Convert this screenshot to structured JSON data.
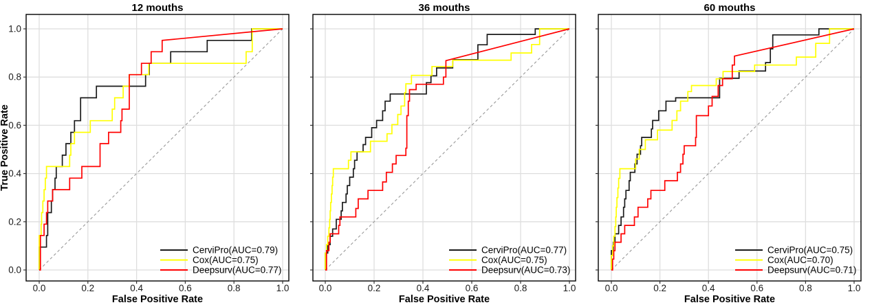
{
  "figure": {
    "background": "#ffffff",
    "description": "Time-dependent ROC curves comparing CerviPro, Cox and Deepsurv models at three horizons"
  },
  "colors": {
    "cervipro": "#1a1a1a",
    "cox": "#ffff00",
    "deepsurv": "#ff0000",
    "grid": "#dedede",
    "diagonal": "#999999",
    "border": "#000000",
    "tick": "#333333"
  },
  "axes": {
    "x_label": "False Positive Rate",
    "y_label": "True Positive Rate",
    "x_tick_labels": [
      "0.0",
      "0.2",
      "0.4",
      "0.6",
      "0.8",
      "1.0"
    ],
    "y_tick_labels": [
      "0.0",
      "0.2",
      "0.4",
      "0.6",
      "0.8",
      "1.0"
    ]
  },
  "chart_data": [
    {
      "type": "line",
      "title": "12 mouths",
      "xlabel": "False Positive Rate",
      "ylabel": "True Positive Rate",
      "xlim": [
        0,
        1
      ],
      "ylim": [
        0,
        1
      ],
      "x_ticks": [
        0,
        0.2,
        0.4,
        0.6,
        0.8,
        1.0
      ],
      "y_ticks": [
        0,
        0.2,
        0.4,
        0.6,
        0.8,
        1.0
      ],
      "show_y_tick_labels": true,
      "show_y_axis_title": true,
      "grid": true,
      "diagonal_reference": true,
      "legend_position": "bottom-right",
      "series": [
        {
          "name": "CerviPro",
          "auc": 0.79,
          "legend_label": "CerviPro(AUC=0.79)",
          "color_key": "cervipro",
          "tail": "step",
          "points": [
            [
              0,
              0
            ],
            [
              0,
              0.095
            ],
            [
              0.03,
              0.143
            ],
            [
              0.035,
              0.238
            ],
            [
              0.05,
              0.286
            ],
            [
              0.055,
              0.333
            ],
            [
              0.065,
              0.381
            ],
            [
              0.07,
              0.429
            ],
            [
              0.095,
              0.476
            ],
            [
              0.11,
              0.524
            ],
            [
              0.13,
              0.571
            ],
            [
              0.145,
              0.619
            ],
            [
              0.17,
              0.714
            ],
            [
              0.235,
              0.762
            ],
            [
              0.437,
              0.81
            ],
            [
              0.452,
              0.857
            ],
            [
              0.54,
              0.905
            ],
            [
              0.69,
              0.952
            ],
            [
              0.873,
              1
            ],
            [
              1,
              1
            ]
          ]
        },
        {
          "name": "Cox",
          "auc": 0.75,
          "legend_label": "Cox(AUC=0.75)",
          "color_key": "cox",
          "tail": "step",
          "points": [
            [
              0,
              0
            ],
            [
              0,
              0.143
            ],
            [
              0.008,
              0.19
            ],
            [
              0.01,
              0.238
            ],
            [
              0.015,
              0.286
            ],
            [
              0.02,
              0.333
            ],
            [
              0.025,
              0.381
            ],
            [
              0.03,
              0.429
            ],
            [
              0.125,
              0.476
            ],
            [
              0.13,
              0.524
            ],
            [
              0.145,
              0.571
            ],
            [
              0.21,
              0.619
            ],
            [
              0.3,
              0.667
            ],
            [
              0.31,
              0.714
            ],
            [
              0.345,
              0.762
            ],
            [
              0.37,
              0.81
            ],
            [
              0.45,
              0.857
            ],
            [
              0.85,
              0.905
            ],
            [
              0.875,
              1
            ],
            [
              1,
              1
            ]
          ]
        },
        {
          "name": "Deepsurv",
          "auc": 0.77,
          "legend_label": "Deepsurv(AUC=0.77)",
          "color_key": "deepsurv",
          "tail": "line",
          "points": [
            [
              0,
              0
            ],
            [
              0.005,
              0.143
            ],
            [
              0.02,
              0.19
            ],
            [
              0.03,
              0.238
            ],
            [
              0.035,
              0.286
            ],
            [
              0.055,
              0.333
            ],
            [
              0.125,
              0.381
            ],
            [
              0.175,
              0.429
            ],
            [
              0.25,
              0.524
            ],
            [
              0.285,
              0.571
            ],
            [
              0.335,
              0.619
            ],
            [
              0.34,
              0.667
            ],
            [
              0.37,
              0.81
            ],
            [
              0.42,
              0.857
            ],
            [
              0.46,
              0.905
            ],
            [
              0.505,
              0.952
            ],
            [
              1,
              1
            ]
          ]
        }
      ]
    },
    {
      "type": "line",
      "title": "36 mouths",
      "xlabel": "False Positive Rate",
      "ylabel": "True Positive Rate",
      "xlim": [
        0,
        1
      ],
      "ylim": [
        0,
        1
      ],
      "x_ticks": [
        0,
        0.2,
        0.4,
        0.6,
        0.8,
        1.0
      ],
      "y_ticks": [
        0,
        0.2,
        0.4,
        0.6,
        0.8,
        1.0
      ],
      "show_y_tick_labels": false,
      "show_y_axis_title": false,
      "grid": true,
      "diagonal_reference": true,
      "legend_position": "bottom-right",
      "series": [
        {
          "name": "CerviPro",
          "auc": 0.77,
          "legend_label": "CerviPro(AUC=0.77)",
          "color_key": "cervipro",
          "tail": "step",
          "points": [
            [
              0,
              0
            ],
            [
              0,
              0.07
            ],
            [
              0.01,
              0.105
            ],
            [
              0.02,
              0.14
            ],
            [
              0.03,
              0.17
            ],
            [
              0.045,
              0.21
            ],
            [
              0.065,
              0.245
            ],
            [
              0.07,
              0.28
            ],
            [
              0.085,
              0.315
            ],
            [
              0.09,
              0.35
            ],
            [
              0.1,
              0.385
            ],
            [
              0.115,
              0.42
            ],
            [
              0.12,
              0.455
            ],
            [
              0.13,
              0.49
            ],
            [
              0.155,
              0.52
            ],
            [
              0.165,
              0.55
            ],
            [
              0.19,
              0.59
            ],
            [
              0.21,
              0.62
            ],
            [
              0.235,
              0.66
            ],
            [
              0.245,
              0.7
            ],
            [
              0.266,
              0.73
            ],
            [
              0.414,
              0.777
            ],
            [
              0.433,
              0.805
            ],
            [
              0.456,
              0.838
            ],
            [
              0.522,
              0.872
            ],
            [
              0.625,
              0.934
            ],
            [
              0.663,
              0.977
            ],
            [
              0.86,
              1
            ],
            [
              1,
              1
            ]
          ]
        },
        {
          "name": "Cox",
          "auc": 0.75,
          "legend_label": "Cox(AUC=0.75)",
          "color_key": "cox",
          "tail": "step",
          "points": [
            [
              0,
              0
            ],
            [
              0,
              0.07
            ],
            [
              0.005,
              0.105
            ],
            [
              0.01,
              0.14
            ],
            [
              0.015,
              0.175
            ],
            [
              0.018,
              0.21
            ],
            [
              0.02,
              0.245
            ],
            [
              0.022,
              0.28
            ],
            [
              0.025,
              0.315
            ],
            [
              0.028,
              0.35
            ],
            [
              0.03,
              0.385
            ],
            [
              0.033,
              0.42
            ],
            [
              0.095,
              0.455
            ],
            [
              0.105,
              0.49
            ],
            [
              0.185,
              0.534
            ],
            [
              0.253,
              0.565
            ],
            [
              0.273,
              0.603
            ],
            [
              0.297,
              0.645
            ],
            [
              0.31,
              0.68
            ],
            [
              0.325,
              0.735
            ],
            [
              0.33,
              0.772
            ],
            [
              0.353,
              0.807
            ],
            [
              0.437,
              0.844
            ],
            [
              0.522,
              0.87
            ],
            [
              0.761,
              0.9
            ],
            [
              0.845,
              0.935
            ],
            [
              0.878,
              1
            ],
            [
              1,
              1
            ]
          ]
        },
        {
          "name": "Deepsurv",
          "auc": 0.73,
          "legend_label": "Deepsurv(AUC=0.73)",
          "color_key": "deepsurv",
          "tail": "line",
          "points": [
            [
              0,
              0
            ],
            [
              0.005,
              0.08
            ],
            [
              0.015,
              0.115
            ],
            [
              0.02,
              0.15
            ],
            [
              0.055,
              0.185
            ],
            [
              0.06,
              0.22
            ],
            [
              0.125,
              0.255
            ],
            [
              0.135,
              0.295
            ],
            [
              0.175,
              0.33
            ],
            [
              0.235,
              0.365
            ],
            [
              0.25,
              0.405
            ],
            [
              0.275,
              0.44
            ],
            [
              0.29,
              0.475
            ],
            [
              0.33,
              0.505
            ],
            [
              0.334,
              0.64
            ],
            [
              0.34,
              0.7
            ],
            [
              0.345,
              0.748
            ],
            [
              0.372,
              0.77
            ],
            [
              0.484,
              0.8
            ],
            [
              0.494,
              0.868
            ],
            [
              1,
              1
            ]
          ]
        }
      ]
    },
    {
      "type": "line",
      "title": "60 mouths",
      "xlabel": "False Positive Rate",
      "ylabel": "True Positive Rate",
      "xlim": [
        0,
        1
      ],
      "ylim": [
        0,
        1
      ],
      "x_ticks": [
        0,
        0.2,
        0.4,
        0.6,
        0.8,
        1.0
      ],
      "y_ticks": [
        0,
        0.2,
        0.4,
        0.6,
        0.8,
        1.0
      ],
      "show_y_tick_labels": false,
      "show_y_axis_title": false,
      "grid": true,
      "diagonal_reference": true,
      "legend_position": "bottom-right",
      "series": [
        {
          "name": "CerviPro",
          "auc": 0.75,
          "legend_label": "CerviPro(AUC=0.75)",
          "color_key": "cervipro",
          "tail": "step",
          "points": [
            [
              0,
              0
            ],
            [
              0,
              0.08
            ],
            [
              0.008,
              0.115
            ],
            [
              0.015,
              0.15
            ],
            [
              0.03,
              0.185
            ],
            [
              0.04,
              0.22
            ],
            [
              0.05,
              0.26
            ],
            [
              0.055,
              0.295
            ],
            [
              0.06,
              0.33
            ],
            [
              0.073,
              0.37
            ],
            [
              0.078,
              0.405
            ],
            [
              0.097,
              0.44
            ],
            [
              0.106,
              0.48
            ],
            [
              0.12,
              0.515
            ],
            [
              0.125,
              0.55
            ],
            [
              0.165,
              0.585
            ],
            [
              0.17,
              0.62
            ],
            [
              0.195,
              0.66
            ],
            [
              0.225,
              0.7
            ],
            [
              0.265,
              0.714
            ],
            [
              0.446,
              0.795
            ],
            [
              0.526,
              0.825
            ],
            [
              0.635,
              0.86
            ],
            [
              0.655,
              0.917
            ],
            [
              0.665,
              0.975
            ],
            [
              0.855,
              1
            ],
            [
              1,
              1
            ]
          ]
        },
        {
          "name": "Cox",
          "auc": 0.7,
          "legend_label": "Cox(AUC=0.70)",
          "color_key": "cox",
          "tail": "step",
          "points": [
            [
              0,
              0
            ],
            [
              0,
              0.06
            ],
            [
              0.005,
              0.1
            ],
            [
              0.01,
              0.14
            ],
            [
              0.015,
              0.18
            ],
            [
              0.018,
              0.22
            ],
            [
              0.02,
              0.26
            ],
            [
              0.023,
              0.3
            ],
            [
              0.027,
              0.34
            ],
            [
              0.03,
              0.38
            ],
            [
              0.035,
              0.42
            ],
            [
              0.1,
              0.46
            ],
            [
              0.115,
              0.5
            ],
            [
              0.14,
              0.54
            ],
            [
              0.19,
              0.58
            ],
            [
              0.25,
              0.62
            ],
            [
              0.27,
              0.66
            ],
            [
              0.285,
              0.7
            ],
            [
              0.315,
              0.74
            ],
            [
              0.33,
              0.765
            ],
            [
              0.432,
              0.793
            ],
            [
              0.46,
              0.823
            ],
            [
              0.59,
              0.85
            ],
            [
              0.762,
              0.883
            ],
            [
              0.842,
              0.94
            ],
            [
              0.899,
              1
            ],
            [
              1,
              1
            ]
          ]
        },
        {
          "name": "Deepsurv",
          "auc": 0.71,
          "legend_label": "Deepsurv(AUC=0.71)",
          "color_key": "deepsurv",
          "tail": "line",
          "points": [
            [
              0,
              0
            ],
            [
              0.005,
              0.045
            ],
            [
              0.01,
              0.08
            ],
            [
              0.015,
              0.115
            ],
            [
              0.04,
              0.15
            ],
            [
              0.055,
              0.185
            ],
            [
              0.095,
              0.22
            ],
            [
              0.11,
              0.26
            ],
            [
              0.15,
              0.295
            ],
            [
              0.163,
              0.33
            ],
            [
              0.22,
              0.37
            ],
            [
              0.272,
              0.405
            ],
            [
              0.285,
              0.44
            ],
            [
              0.295,
              0.48
            ],
            [
              0.3,
              0.515
            ],
            [
              0.347,
              0.55
            ],
            [
              0.35,
              0.64
            ],
            [
              0.4,
              0.68
            ],
            [
              0.415,
              0.72
            ],
            [
              0.44,
              0.765
            ],
            [
              0.458,
              0.793
            ],
            [
              0.498,
              0.85
            ],
            [
              0.507,
              0.887
            ],
            [
              1,
              1
            ]
          ]
        }
      ]
    }
  ]
}
